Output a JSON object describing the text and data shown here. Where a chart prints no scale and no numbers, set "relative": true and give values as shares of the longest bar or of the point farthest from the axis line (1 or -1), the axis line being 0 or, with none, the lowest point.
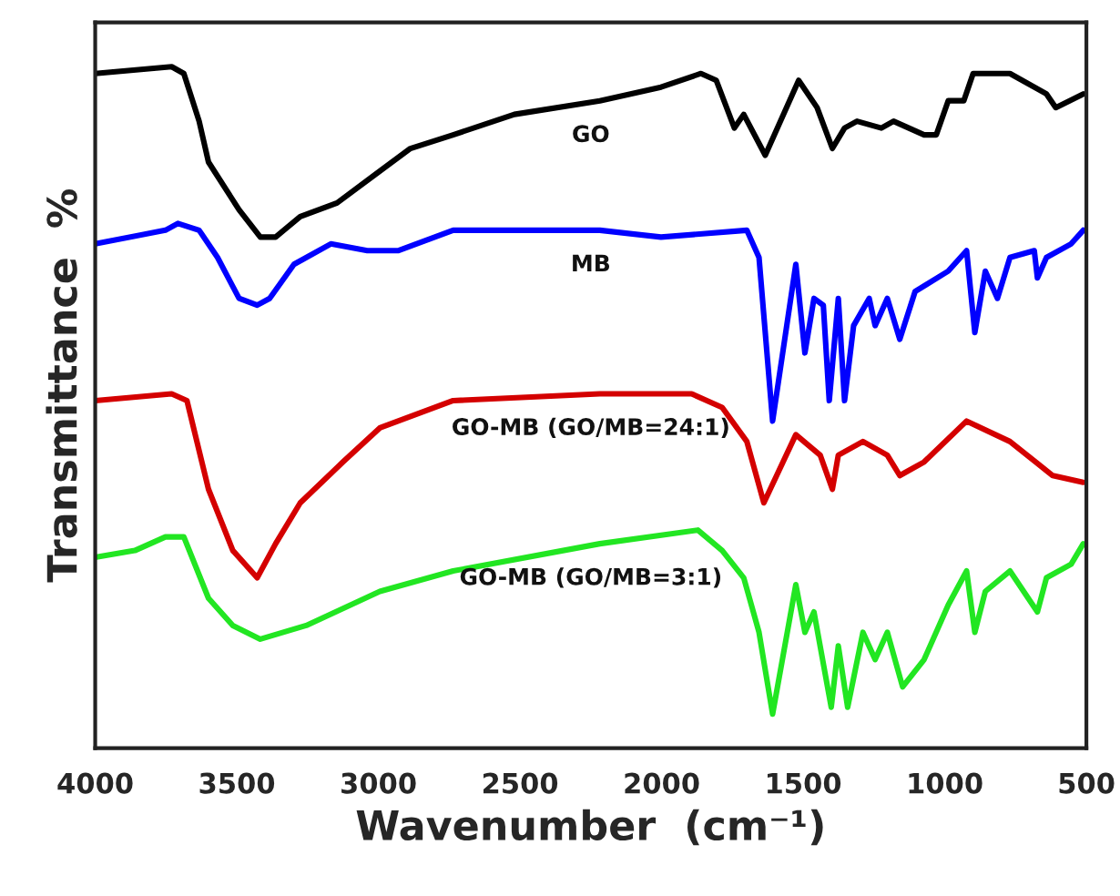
{
  "chart_data": {
    "type": "line",
    "relative": true,
    "xlabel": "Wavenumber  (cm⁻¹)",
    "ylabel": "Transmittance  %",
    "xlim": [
      4000,
      500
    ],
    "xticks": [
      4000,
      3500,
      3000,
      2500,
      2000,
      1500,
      1000,
      500
    ],
    "tick_labels": "x",
    "grid": false,
    "legend": false,
    "marker": "none",
    "line_style": "solid",
    "series": [
      {
        "name": "GO",
        "color": "#000000",
        "x": [
          4000,
          3730,
          3687,
          3633,
          3600,
          3492,
          3417,
          3363,
          3276,
          3146,
          3017,
          2887,
          2736,
          2520,
          2218,
          2002,
          1861,
          1807,
          1743,
          1710,
          1634,
          1516,
          1451,
          1397,
          1354,
          1310,
          1224,
          1181,
          1073,
          1030,
          988,
          933,
          900,
          770,
          641,
          608,
          511
        ],
        "values": [
          0.99,
          1.0,
          0.99,
          0.92,
          0.86,
          0.79,
          0.75,
          0.75,
          0.78,
          0.8,
          0.84,
          0.88,
          0.9,
          0.93,
          0.95,
          0.97,
          0.99,
          0.98,
          0.91,
          0.93,
          0.87,
          0.98,
          0.94,
          0.88,
          0.91,
          0.92,
          0.91,
          0.92,
          0.9,
          0.9,
          0.95,
          0.95,
          0.99,
          0.99,
          0.96,
          0.94,
          0.96
        ]
      },
      {
        "name": "MB",
        "color": "#0000ff",
        "x": [
          4000,
          3752,
          3708,
          3633,
          3568,
          3492,
          3428,
          3384,
          3298,
          3168,
          3039,
          2931,
          2736,
          2218,
          2002,
          1699,
          1656,
          1608,
          1526,
          1494,
          1462,
          1429,
          1408,
          1376,
          1354,
          1322,
          1267,
          1246,
          1203,
          1159,
          1105,
          988,
          923,
          894,
          857,
          814,
          770,
          684,
          673,
          641,
          554,
          511
        ],
        "values": [
          0.74,
          0.76,
          0.77,
          0.76,
          0.72,
          0.66,
          0.65,
          0.66,
          0.71,
          0.74,
          0.73,
          0.73,
          0.76,
          0.76,
          0.75,
          0.76,
          0.72,
          0.48,
          0.71,
          0.58,
          0.66,
          0.65,
          0.51,
          0.66,
          0.51,
          0.62,
          0.66,
          0.62,
          0.66,
          0.6,
          0.67,
          0.7,
          0.73,
          0.61,
          0.7,
          0.66,
          0.72,
          0.73,
          0.69,
          0.72,
          0.74,
          0.76
        ]
      },
      {
        "name": "GO-MB (GO/MB=24:1)",
        "color": "#d40000",
        "x": [
          4000,
          3730,
          3676,
          3600,
          3514,
          3428,
          3363,
          3276,
          3125,
          2995,
          2736,
          2218,
          1894,
          1786,
          1699,
          1639,
          1526,
          1440,
          1397,
          1376,
          1289,
          1203,
          1159,
          1073,
          923,
          770,
          619,
          511
        ],
        "values": [
          0.51,
          0.52,
          0.51,
          0.38,
          0.29,
          0.25,
          0.3,
          0.36,
          0.42,
          0.47,
          0.51,
          0.52,
          0.52,
          0.5,
          0.45,
          0.36,
          0.46,
          0.43,
          0.38,
          0.43,
          0.45,
          0.43,
          0.4,
          0.42,
          0.48,
          0.45,
          0.4,
          0.39
        ]
      },
      {
        "name": "GO-MB (GO/MB=3:1)",
        "color": "#22e622",
        "x": [
          4000,
          3860,
          3752,
          3687,
          3600,
          3514,
          3417,
          3255,
          2995,
          2736,
          2218,
          1872,
          1786,
          1710,
          1656,
          1608,
          1526,
          1494,
          1462,
          1401,
          1376,
          1343,
          1289,
          1246,
          1203,
          1149,
          1073,
          988,
          923,
          894,
          857,
          770,
          673,
          641,
          554,
          511
        ],
        "values": [
          0.28,
          0.29,
          0.31,
          0.31,
          0.22,
          0.18,
          0.16,
          0.18,
          0.23,
          0.26,
          0.3,
          0.32,
          0.29,
          0.25,
          0.17,
          0.05,
          0.24,
          0.17,
          0.2,
          0.06,
          0.15,
          0.06,
          0.17,
          0.13,
          0.17,
          0.09,
          0.13,
          0.21,
          0.26,
          0.17,
          0.23,
          0.26,
          0.2,
          0.25,
          0.27,
          0.3
        ]
      }
    ]
  }
}
